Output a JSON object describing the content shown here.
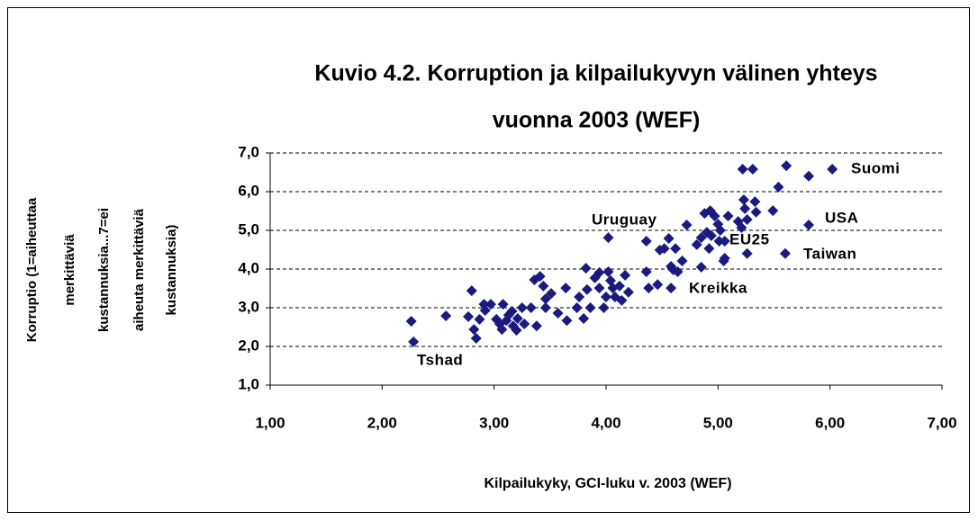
{
  "chart_data": {
    "type": "scatter",
    "title": [
      "Kuvio 4.2. Korruption ja kilpailukyvyn välinen yhteys",
      "vuonna 2003 (WEF)"
    ],
    "x_label": "Kilpailukyky, GCI-luku v. 2003 (WEF)",
    "y_label": [
      "Korruptio (1=aiheuttaa",
      "merkittäviä",
      "kustannuksia...7=ei",
      "aiheuta merkittäviä",
      "kustannuksia)"
    ],
    "annotations": [
      "Suomi",
      "USA",
      "Taiwan",
      "Uruguay",
      "EU25",
      "Kreikka",
      "Tshad"
    ],
    "color": "#1a1a80",
    "grid": true,
    "xlim": [
      1,
      7
    ],
    "ylim": [
      1,
      7
    ],
    "xticks": [
      {
        "value": 1,
        "label": "1,00"
      },
      {
        "value": 2,
        "label": "2,00"
      },
      {
        "value": 3,
        "label": "3,00"
      },
      {
        "value": 4,
        "label": "4,00"
      },
      {
        "value": 5,
        "label": "5,00"
      },
      {
        "value": 6,
        "label": "6,00"
      },
      {
        "value": 7,
        "label": "7,00"
      }
    ],
    "yticks": [
      {
        "value": 1,
        "label": "1,0"
      },
      {
        "value": 2,
        "label": "2,0"
      },
      {
        "value": 3,
        "label": "3,0"
      },
      {
        "value": 4,
        "label": "4,0"
      },
      {
        "value": 5,
        "label": "5,0"
      },
      {
        "value": 6,
        "label": "6,0"
      },
      {
        "value": 7,
        "label": "7,0"
      }
    ],
    "x": [
      2.26,
      2.28,
      2.57,
      2.8,
      2.77,
      2.82,
      2.84,
      2.87,
      2.91,
      2.97,
      2.92,
      3.02,
      3.05,
      3.07,
      3.08,
      3.11,
      3.13,
      3.16,
      3.17,
      3.2,
      3.21,
      3.25,
      3.27,
      3.33,
      3.38,
      3.36,
      3.41,
      3.44,
      3.46,
      3.46,
      3.51,
      3.57,
      3.64,
      3.65,
      3.74,
      3.76,
      3.8,
      3.83,
      3.82,
      3.86,
      3.9,
      3.94,
      3.94,
      3.98,
      4.0,
      4.02,
      4.02,
      4.04,
      4.06,
      4.08,
      4.12,
      4.14,
      4.17,
      4.2,
      4.36,
      4.36,
      4.38,
      4.46,
      4.48,
      4.52,
      4.56,
      4.58,
      4.58,
      4.6,
      4.62,
      4.64,
      4.68,
      4.72,
      4.81,
      4.85,
      4.85,
      4.88,
      4.9,
      4.93,
      4.92,
      4.94,
      4.97,
      5.0,
      5.01,
      5.02,
      5.05,
      5.06,
      5.06,
      5.09,
      5.18,
      5.21,
      5.22,
      5.23,
      5.24,
      5.26,
      5.26,
      5.31,
      5.33,
      5.34,
      5.49,
      5.54,
      5.6,
      5.61,
      5.81,
      5.81,
      6.02
    ],
    "values": [
      2.65,
      2.12,
      2.79,
      3.44,
      2.77,
      2.44,
      2.21,
      2.7,
      3.09,
      3.09,
      2.93,
      2.7,
      2.58,
      2.44,
      3.09,
      2.67,
      2.81,
      2.91,
      2.53,
      2.42,
      2.72,
      3.0,
      2.58,
      3.0,
      2.53,
      3.72,
      3.81,
      3.56,
      3.23,
      3.0,
      3.37,
      2.86,
      3.51,
      2.67,
      3.0,
      3.28,
      2.72,
      3.47,
      4.02,
      3.0,
      3.77,
      3.91,
      3.51,
      3.0,
      3.28,
      4.81,
      3.93,
      3.7,
      3.51,
      3.28,
      3.56,
      3.19,
      3.84,
      3.4,
      4.72,
      3.93,
      3.51,
      3.6,
      4.49,
      4.53,
      4.79,
      4.07,
      3.51,
      3.98,
      4.53,
      3.93,
      4.21,
      5.14,
      4.63,
      4.05,
      4.81,
      5.44,
      4.95,
      5.51,
      4.53,
      4.86,
      5.37,
      5.16,
      4.72,
      5.0,
      4.21,
      4.28,
      4.72,
      5.37,
      5.23,
      5.07,
      6.58,
      5.79,
      5.56,
      5.28,
      4.4,
      6.58,
      5.74,
      5.47,
      5.51,
      6.12,
      4.4,
      6.67,
      6.4,
      5.14,
      6.58
    ]
  }
}
